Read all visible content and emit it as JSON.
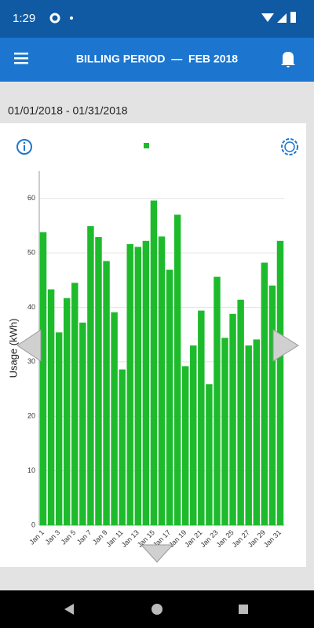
{
  "status_bar": {
    "time": "1:29"
  },
  "header": {
    "title": "BILLING PERIOD  —  FEB 2018"
  },
  "date_range": "01/01/2018 - 01/31/2018",
  "chart_data": {
    "type": "bar",
    "y_label": "Usage (kWh)",
    "color": "#1dbb2c",
    "categories": [
      "Jan 1",
      null,
      "Jan 3",
      null,
      "Jan 5",
      null,
      "Jan 7",
      null,
      "Jan 9",
      null,
      "Jan 11",
      null,
      "Jan 13",
      null,
      "Jan 15",
      null,
      "Jan 17",
      null,
      "Jan 19",
      null,
      "Jan 21",
      null,
      "Jan 23",
      null,
      "Jan 25",
      null,
      "Jan 27",
      null,
      "Jan 29",
      null,
      "Jan 31"
    ],
    "values": [
      53.8,
      43.3,
      35.4,
      41.7,
      44.5,
      37.2,
      54.9,
      52.9,
      48.5,
      39.1,
      28.6,
      51.6,
      51.1,
      52.2,
      59.6,
      53.0,
      46.9,
      57.0,
      29.2,
      33.0,
      39.4,
      25.9,
      45.6,
      34.4,
      38.8,
      41.4,
      33.0,
      34.1,
      48.2,
      44.0,
      52.2
    ],
    "ylim": [
      0,
      65
    ],
    "yticks": [
      0,
      10,
      20,
      30,
      40,
      50,
      60
    ],
    "grid": true
  }
}
